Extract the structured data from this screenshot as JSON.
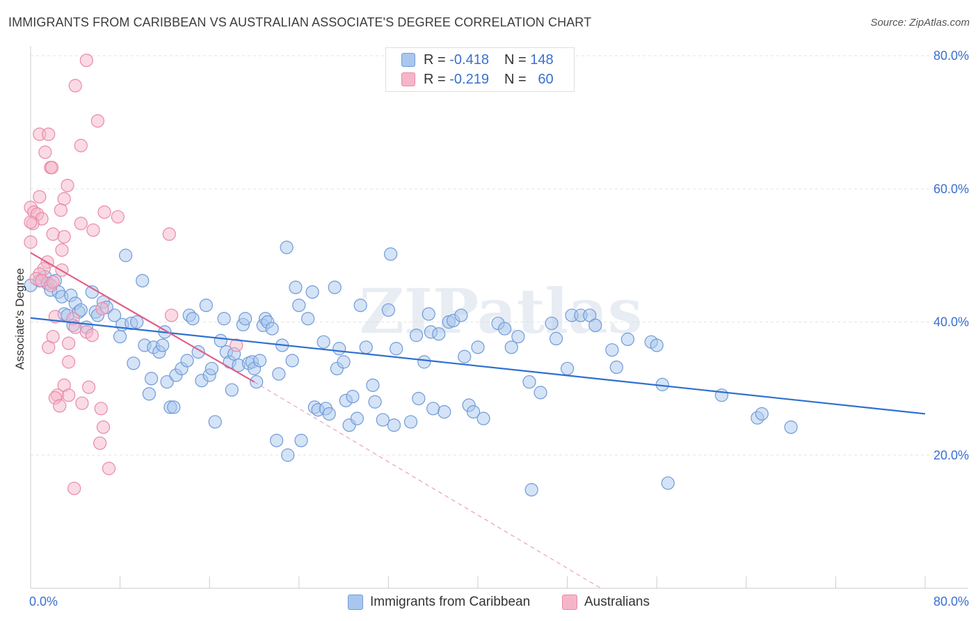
{
  "title": "IMMIGRANTS FROM CARIBBEAN VS AUSTRALIAN ASSOCIATE'S DEGREE CORRELATION CHART",
  "source": "Source: ZipAtlas.com",
  "watermark": "ZIPatlas",
  "colors": {
    "blue_fill": "#a9c7ee",
    "blue_stroke": "#6f9ad8",
    "blue_line": "#2e6fcf",
    "pink_fill": "#f6b6c9",
    "pink_stroke": "#e88aa6",
    "pink_line": "#e0608a",
    "axis_text": "#3a6fd0",
    "grid": "#e3e3e3"
  },
  "legend": {
    "rows": [
      {
        "r_label": "R =",
        "r_value": "-0.418",
        "n_label": "N =",
        "n_value": "148"
      },
      {
        "r_label": "R =",
        "r_value": "-0.219",
        "n_label": "N =",
        "n_value": "60"
      }
    ]
  },
  "bottom_legend": {
    "series1": "Immigrants from Caribbean",
    "series2": "Australians"
  },
  "chart_data": {
    "type": "scatter",
    "ylabel": "Associate's Degree",
    "xlim": [
      0,
      0.8
    ],
    "ylim": [
      0,
      0.8
    ],
    "x_tick_labels": [
      "0.0%",
      "80.0%"
    ],
    "y_tick_labels": [
      "20.0%",
      "40.0%",
      "60.0%",
      "80.0%"
    ],
    "y_ticks": [
      0.2,
      0.4,
      0.6,
      0.8
    ],
    "grid": true,
    "legend_position": "top-center",
    "series": [
      {
        "name": "Immigrants from Caribbean",
        "color": "#a9c7ee",
        "trend": {
          "x": [
            0.0,
            0.8
          ],
          "y": [
            0.406,
            0.262
          ]
        },
        "points": [
          [
            0.0,
            0.455
          ],
          [
            0.008,
            0.462
          ],
          [
            0.013,
            0.468
          ],
          [
            0.015,
            0.458
          ],
          [
            0.018,
            0.448
          ],
          [
            0.022,
            0.462
          ],
          [
            0.025,
            0.445
          ],
          [
            0.028,
            0.438
          ],
          [
            0.03,
            0.412
          ],
          [
            0.033,
            0.41
          ],
          [
            0.036,
            0.44
          ],
          [
            0.038,
            0.395
          ],
          [
            0.04,
            0.428
          ],
          [
            0.043,
            0.415
          ],
          [
            0.045,
            0.418
          ],
          [
            0.05,
            0.392
          ],
          [
            0.055,
            0.445
          ],
          [
            0.058,
            0.415
          ],
          [
            0.06,
            0.41
          ],
          [
            0.065,
            0.43
          ],
          [
            0.068,
            0.422
          ],
          [
            0.075,
            0.41
          ],
          [
            0.08,
            0.378
          ],
          [
            0.082,
            0.396
          ],
          [
            0.085,
            0.5
          ],
          [
            0.09,
            0.398
          ],
          [
            0.092,
            0.338
          ],
          [
            0.095,
            0.4
          ],
          [
            0.1,
            0.462
          ],
          [
            0.102,
            0.365
          ],
          [
            0.106,
            0.292
          ],
          [
            0.108,
            0.315
          ],
          [
            0.11,
            0.362
          ],
          [
            0.115,
            0.355
          ],
          [
            0.118,
            0.365
          ],
          [
            0.12,
            0.385
          ],
          [
            0.122,
            0.31
          ],
          [
            0.125,
            0.272
          ],
          [
            0.128,
            0.272
          ],
          [
            0.13,
            0.32
          ],
          [
            0.135,
            0.33
          ],
          [
            0.14,
            0.342
          ],
          [
            0.142,
            0.41
          ],
          [
            0.145,
            0.405
          ],
          [
            0.15,
            0.355
          ],
          [
            0.153,
            0.312
          ],
          [
            0.157,
            0.425
          ],
          [
            0.16,
            0.32
          ],
          [
            0.162,
            0.33
          ],
          [
            0.165,
            0.25
          ],
          [
            0.17,
            0.372
          ],
          [
            0.173,
            0.405
          ],
          [
            0.175,
            0.355
          ],
          [
            0.178,
            0.34
          ],
          [
            0.18,
            0.298
          ],
          [
            0.182,
            0.352
          ],
          [
            0.186,
            0.335
          ],
          [
            0.19,
            0.396
          ],
          [
            0.192,
            0.405
          ],
          [
            0.195,
            0.338
          ],
          [
            0.198,
            0.34
          ],
          [
            0.2,
            0.33
          ],
          [
            0.202,
            0.31
          ],
          [
            0.205,
            0.342
          ],
          [
            0.208,
            0.395
          ],
          [
            0.21,
            0.405
          ],
          [
            0.212,
            0.4
          ],
          [
            0.216,
            0.39
          ],
          [
            0.22,
            0.222
          ],
          [
            0.222,
            0.322
          ],
          [
            0.225,
            0.365
          ],
          [
            0.229,
            0.512
          ],
          [
            0.23,
            0.2
          ],
          [
            0.234,
            0.342
          ],
          [
            0.237,
            0.452
          ],
          [
            0.24,
            0.425
          ],
          [
            0.242,
            0.222
          ],
          [
            0.248,
            0.405
          ],
          [
            0.252,
            0.445
          ],
          [
            0.254,
            0.272
          ],
          [
            0.257,
            0.268
          ],
          [
            0.262,
            0.37
          ],
          [
            0.264,
            0.27
          ],
          [
            0.267,
            0.262
          ],
          [
            0.272,
            0.452
          ],
          [
            0.274,
            0.33
          ],
          [
            0.276,
            0.36
          ],
          [
            0.28,
            0.34
          ],
          [
            0.282,
            0.282
          ],
          [
            0.285,
            0.245
          ],
          [
            0.288,
            0.288
          ],
          [
            0.292,
            0.255
          ],
          [
            0.295,
            0.425
          ],
          [
            0.3,
            0.362
          ],
          [
            0.306,
            0.305
          ],
          [
            0.308,
            0.28
          ],
          [
            0.315,
            0.253
          ],
          [
            0.32,
            0.418
          ],
          [
            0.322,
            0.502
          ],
          [
            0.325,
            0.245
          ],
          [
            0.327,
            0.36
          ],
          [
            0.34,
            0.25
          ],
          [
            0.345,
            0.38
          ],
          [
            0.347,
            0.285
          ],
          [
            0.352,
            0.34
          ],
          [
            0.356,
            0.412
          ],
          [
            0.358,
            0.385
          ],
          [
            0.36,
            0.27
          ],
          [
            0.365,
            0.382
          ],
          [
            0.37,
            0.265
          ],
          [
            0.374,
            0.4
          ],
          [
            0.378,
            0.402
          ],
          [
            0.385,
            0.41
          ],
          [
            0.388,
            0.348
          ],
          [
            0.392,
            0.275
          ],
          [
            0.396,
            0.265
          ],
          [
            0.4,
            0.362
          ],
          [
            0.405,
            0.255
          ],
          [
            0.418,
            0.398
          ],
          [
            0.424,
            0.39
          ],
          [
            0.43,
            0.362
          ],
          [
            0.436,
            0.378
          ],
          [
            0.446,
            0.31
          ],
          [
            0.448,
            0.148
          ],
          [
            0.456,
            0.294
          ],
          [
            0.466,
            0.398
          ],
          [
            0.47,
            0.375
          ],
          [
            0.48,
            0.33
          ],
          [
            0.484,
            0.41
          ],
          [
            0.492,
            0.41
          ],
          [
            0.5,
            0.41
          ],
          [
            0.505,
            0.395
          ],
          [
            0.52,
            0.358
          ],
          [
            0.524,
            0.332
          ],
          [
            0.534,
            0.374
          ],
          [
            0.555,
            0.37
          ],
          [
            0.56,
            0.365
          ],
          [
            0.565,
            0.306
          ],
          [
            0.57,
            0.158
          ],
          [
            0.618,
            0.29
          ],
          [
            0.65,
            0.256
          ],
          [
            0.654,
            0.262
          ],
          [
            0.68,
            0.242
          ]
        ]
      },
      {
        "name": "Australians",
        "color": "#f6b6c9",
        "trend_solid": {
          "x": [
            0.0,
            0.2
          ],
          "y": [
            0.504,
            0.31
          ]
        },
        "trend_dashed": {
          "x": [
            0.2,
            0.51
          ],
          "y": [
            0.31,
            0.0
          ]
        },
        "points": [
          [
            0.05,
            0.793
          ],
          [
            0.04,
            0.755
          ],
          [
            0.06,
            0.702
          ],
          [
            0.008,
            0.682
          ],
          [
            0.016,
            0.682
          ],
          [
            0.045,
            0.665
          ],
          [
            0.013,
            0.655
          ],
          [
            0.018,
            0.632
          ],
          [
            0.019,
            0.632
          ],
          [
            0.033,
            0.605
          ],
          [
            0.008,
            0.588
          ],
          [
            0.03,
            0.585
          ],
          [
            0.0,
            0.572
          ],
          [
            0.003,
            0.565
          ],
          [
            0.006,
            0.562
          ],
          [
            0.027,
            0.568
          ],
          [
            0.066,
            0.565
          ],
          [
            0.078,
            0.558
          ],
          [
            0.01,
            0.555
          ],
          [
            0.002,
            0.548
          ],
          [
            0.0,
            0.55
          ],
          [
            0.045,
            0.548
          ],
          [
            0.056,
            0.538
          ],
          [
            0.02,
            0.532
          ],
          [
            0.124,
            0.532
          ],
          [
            0.03,
            0.528
          ],
          [
            0.0,
            0.52
          ],
          [
            0.028,
            0.508
          ],
          [
            0.015,
            0.49
          ],
          [
            0.012,
            0.48
          ],
          [
            0.008,
            0.472
          ],
          [
            0.028,
            0.478
          ],
          [
            0.005,
            0.465
          ],
          [
            0.01,
            0.462
          ],
          [
            0.018,
            0.455
          ],
          [
            0.02,
            0.46
          ],
          [
            0.064,
            0.42
          ],
          [
            0.126,
            0.41
          ],
          [
            0.022,
            0.408
          ],
          [
            0.038,
            0.405
          ],
          [
            0.04,
            0.392
          ],
          [
            0.05,
            0.385
          ],
          [
            0.055,
            0.38
          ],
          [
            0.02,
            0.378
          ],
          [
            0.034,
            0.368
          ],
          [
            0.016,
            0.362
          ],
          [
            0.184,
            0.365
          ],
          [
            0.034,
            0.34
          ],
          [
            0.03,
            0.305
          ],
          [
            0.052,
            0.302
          ],
          [
            0.024,
            0.29
          ],
          [
            0.034,
            0.29
          ],
          [
            0.022,
            0.286
          ],
          [
            0.026,
            0.274
          ],
          [
            0.046,
            0.278
          ],
          [
            0.063,
            0.27
          ],
          [
            0.065,
            0.242
          ],
          [
            0.062,
            0.218
          ],
          [
            0.07,
            0.18
          ],
          [
            0.039,
            0.15
          ]
        ]
      }
    ]
  }
}
